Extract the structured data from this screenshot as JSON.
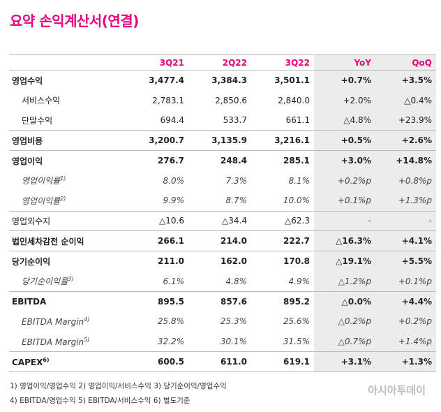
{
  "title": "요약 손익계산서(연결)",
  "table": {
    "columns": [
      "3Q21",
      "2Q22",
      "3Q22",
      "YoY",
      "QoQ"
    ],
    "rows": [
      {
        "label": "영업수익",
        "cells": [
          "3,477.4",
          "3,384.3",
          "3,501.1",
          "+0.7%",
          "+3.5%"
        ]
      },
      {
        "label": "서비스수익",
        "cells": [
          "2,783.1",
          "2,850.6",
          "2,840.0",
          "+2.0%",
          "△0.4%"
        ]
      },
      {
        "label": "단말수익",
        "cells": [
          "694.4",
          "533.7",
          "661.1",
          "△4.8%",
          "+23.9%"
        ]
      },
      {
        "label": "영업비용",
        "cells": [
          "3,200.7",
          "3,135.9",
          "3,216.1",
          "+0.5%",
          "+2.6%"
        ]
      },
      {
        "label": "영업이익",
        "cells": [
          "276.7",
          "248.4",
          "285.1",
          "+3.0%",
          "+14.8%"
        ]
      },
      {
        "label": "영업이익률",
        "note": "1)",
        "cells": [
          "8.0%",
          "7.3%",
          "8.1%",
          "+0.2%p",
          "+0.8%p"
        ]
      },
      {
        "label": "영업이익률",
        "note": "2)",
        "cells": [
          "9.9%",
          "8.7%",
          "10.0%",
          "+0.1%p",
          "+1.3%p"
        ]
      },
      {
        "label": "영업외수지",
        "cells": [
          "△10.6",
          "△34.4",
          "△62.3",
          "-",
          "-"
        ]
      },
      {
        "label": "법인세차감전 순이익",
        "cells": [
          "266.1",
          "214.0",
          "222.7",
          "△16.3%",
          "+4.1%"
        ]
      },
      {
        "label": "당기순이익",
        "cells": [
          "211.0",
          "162.0",
          "170.8",
          "△19.1%",
          "+5.5%"
        ]
      },
      {
        "label": "당기순이익률",
        "note": "3)",
        "cells": [
          "6.1%",
          "4.8%",
          "4.9%",
          "△1.2%p",
          "+0.1%p"
        ]
      },
      {
        "label": "EBITDA",
        "cells": [
          "895.5",
          "857.6",
          "895.2",
          "△0.0%",
          "+4.4%"
        ]
      },
      {
        "label": "EBITDA Margin",
        "note": "4)",
        "cells": [
          "25.8%",
          "25.3%",
          "25.6%",
          "△0.2%p",
          "+0.2%p"
        ]
      },
      {
        "label": "EBITDA Margin",
        "note": "5)",
        "cells": [
          "32.2%",
          "30.1%",
          "31.5%",
          "△0.7%p",
          "+1.4%p"
        ]
      },
      {
        "label": "CAPEX",
        "note": "6)",
        "cells": [
          "600.5",
          "611.0",
          "619.1",
          "+3.1%",
          "+1.3%"
        ]
      }
    ]
  },
  "footnotes": [
    "1) 영업이익/영업수익  2) 영업이익/서비스수익  3) 당기순이익/영업수익",
    "4) EBITDA/영업수익  5) EBITDA/서비스수익  6) 별도기준"
  ],
  "watermark": "아시아투데이"
}
